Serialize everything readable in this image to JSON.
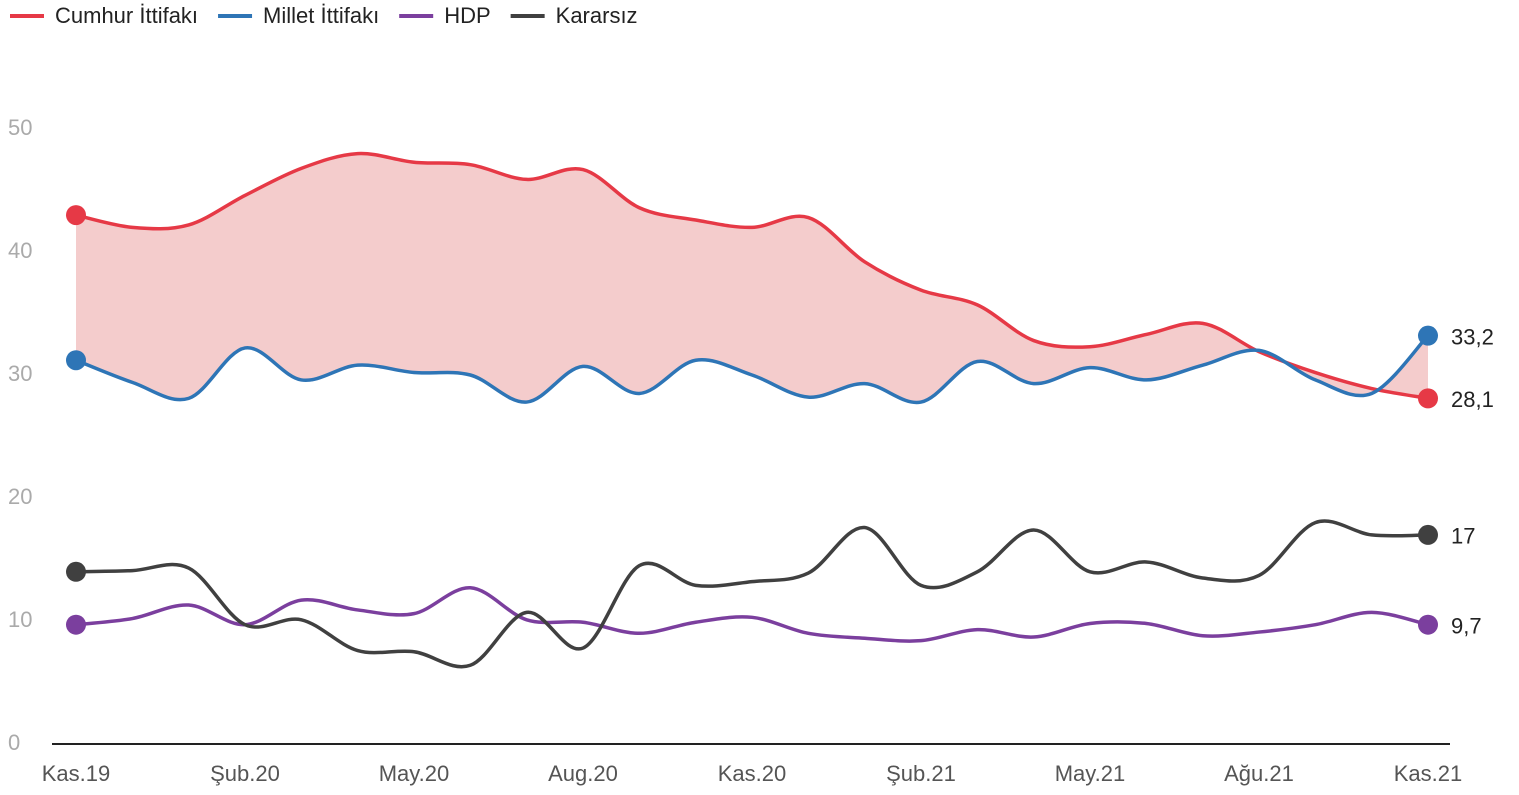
{
  "chart_data": {
    "type": "line",
    "categories": [
      "Kas.19",
      null,
      null,
      "Şub.20",
      null,
      null,
      "May.20",
      null,
      null,
      "Aug.20",
      null,
      null,
      "Kas.20",
      null,
      null,
      "Şub.21",
      null,
      null,
      "May.21",
      null,
      null,
      "Ağu.21",
      null,
      null,
      "Kas.21"
    ],
    "series": [
      {
        "name": "Cumhur İttifakı",
        "color": "#e63946",
        "values": [
          43,
          42,
          42.2,
          44.6,
          46.8,
          48,
          47.3,
          47.1,
          45.9,
          46.7,
          43.6,
          42.6,
          42,
          42.8,
          39.2,
          36.9,
          35.7,
          32.8,
          32.3,
          33.3,
          34.2,
          31.9,
          30.2,
          28.9,
          28.1
        ],
        "value_labels": [
          null,
          null,
          null,
          null,
          null,
          null,
          null,
          null,
          null,
          null,
          null,
          null,
          null,
          null,
          null,
          null,
          null,
          null,
          null,
          null,
          null,
          null,
          null,
          null,
          "28,1"
        ]
      },
      {
        "name": "Millet İttifakı",
        "color": "#2e75b6",
        "values": [
          31.2,
          29.4,
          28.1,
          32.2,
          29.6,
          30.8,
          30.2,
          30,
          27.8,
          30.7,
          28.5,
          31.2,
          30,
          28.2,
          29.3,
          27.8,
          31.1,
          29.3,
          30.6,
          29.6,
          30.8,
          32,
          29.6,
          28.5,
          33.2
        ],
        "value_labels": [
          null,
          null,
          null,
          null,
          null,
          null,
          null,
          null,
          null,
          null,
          null,
          null,
          null,
          null,
          null,
          null,
          null,
          null,
          null,
          null,
          null,
          null,
          null,
          null,
          "33,2"
        ]
      },
      {
        "name": "HDP",
        "color": "#7b3f9e",
        "values": [
          9.7,
          10.2,
          11.3,
          9.7,
          11.7,
          10.9,
          10.6,
          12.7,
          10.1,
          9.9,
          9,
          9.9,
          10.3,
          9,
          8.6,
          8.4,
          9.3,
          8.7,
          9.8,
          9.8,
          8.8,
          9.1,
          9.7,
          10.7,
          9.7
        ],
        "value_labels": [
          null,
          null,
          null,
          null,
          null,
          null,
          null,
          null,
          null,
          null,
          null,
          null,
          null,
          null,
          null,
          null,
          null,
          null,
          null,
          null,
          null,
          null,
          null,
          null,
          "9,7"
        ]
      },
      {
        "name": "Kararsız",
        "color": "#404040",
        "values": [
          14,
          14.1,
          14.3,
          9.7,
          10.1,
          7.6,
          7.5,
          6.4,
          10.7,
          7.8,
          14.5,
          12.9,
          13.2,
          13.9,
          17.6,
          12.9,
          14,
          17.4,
          14,
          14.8,
          13.5,
          13.7,
          18,
          17,
          17
        ],
        "value_labels": [
          null,
          null,
          null,
          null,
          null,
          null,
          null,
          null,
          null,
          null,
          null,
          null,
          null,
          null,
          null,
          null,
          null,
          null,
          null,
          null,
          null,
          null,
          null,
          null,
          "17"
        ]
      }
    ],
    "area_between": {
      "color": "#f4cccc"
    },
    "ylim": [
      0,
      50
    ],
    "yticks": [
      0,
      10,
      20,
      30,
      40,
      50
    ],
    "grid": false,
    "legend": "top-left"
  }
}
